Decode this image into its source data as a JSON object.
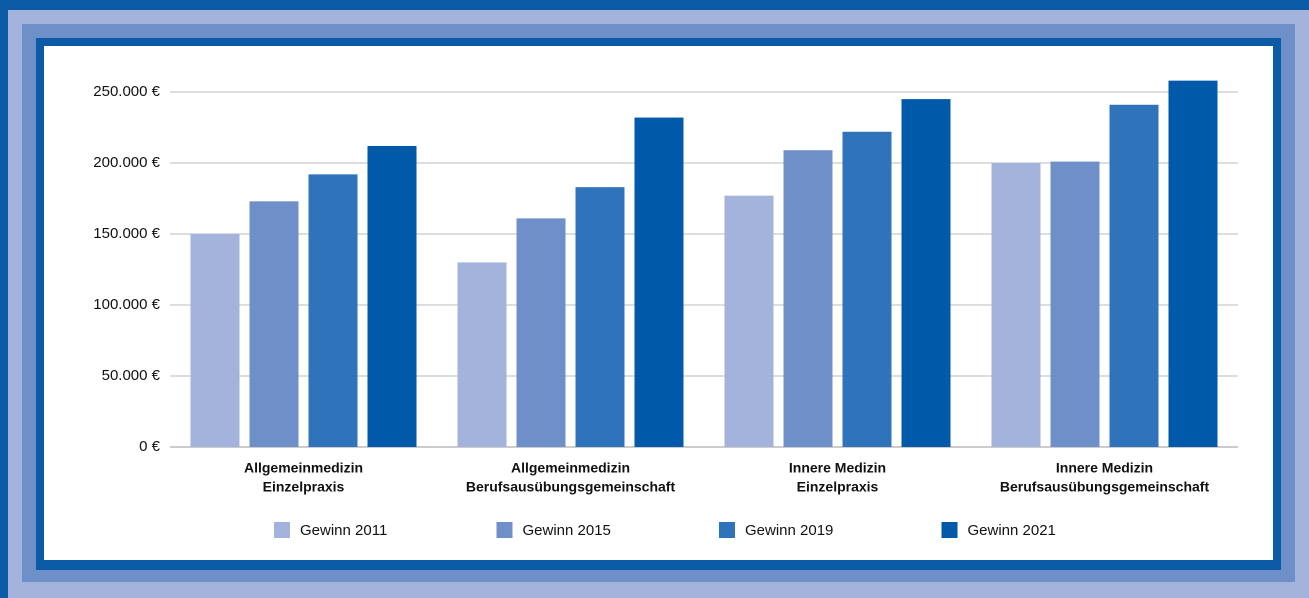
{
  "chart_data": {
    "type": "bar",
    "categories": [
      [
        "Allgemeinmedizin",
        "Einzelpraxis"
      ],
      [
        "Allgemeinmedizin",
        "Berufsausübungsgemeinschaft"
      ],
      [
        "Innere Medizin",
        "Einzelpraxis"
      ],
      [
        "Innere Medizin",
        "Berufsausübungsgemeinschaft"
      ]
    ],
    "series": [
      {
        "name": "Gewinn 2011",
        "color": "#a3b3dc",
        "values": [
          150000,
          130000,
          177000,
          200000
        ]
      },
      {
        "name": "Gewinn 2015",
        "color": "#6f8fc8",
        "values": [
          173000,
          161000,
          209000,
          201000
        ]
      },
      {
        "name": "Gewinn 2019",
        "color": "#2f73bb",
        "values": [
          192000,
          183000,
          222000,
          241000
        ]
      },
      {
        "name": "Gewinn 2021",
        "color": "#005aa9",
        "values": [
          212000,
          232000,
          245000,
          258000
        ]
      }
    ],
    "ylim": [
      0,
      250000
    ],
    "yticks": [
      {
        "value": 0,
        "label": "0 €"
      },
      {
        "value": 50000,
        "label": "50.000 €"
      },
      {
        "value": 100000,
        "label": "100.000 €"
      },
      {
        "value": 150000,
        "label": "150.000 €"
      },
      {
        "value": 200000,
        "label": "200.000 €"
      },
      {
        "value": 250000,
        "label": "250.000 €"
      }
    ],
    "grid": true,
    "legend": "bottom"
  }
}
